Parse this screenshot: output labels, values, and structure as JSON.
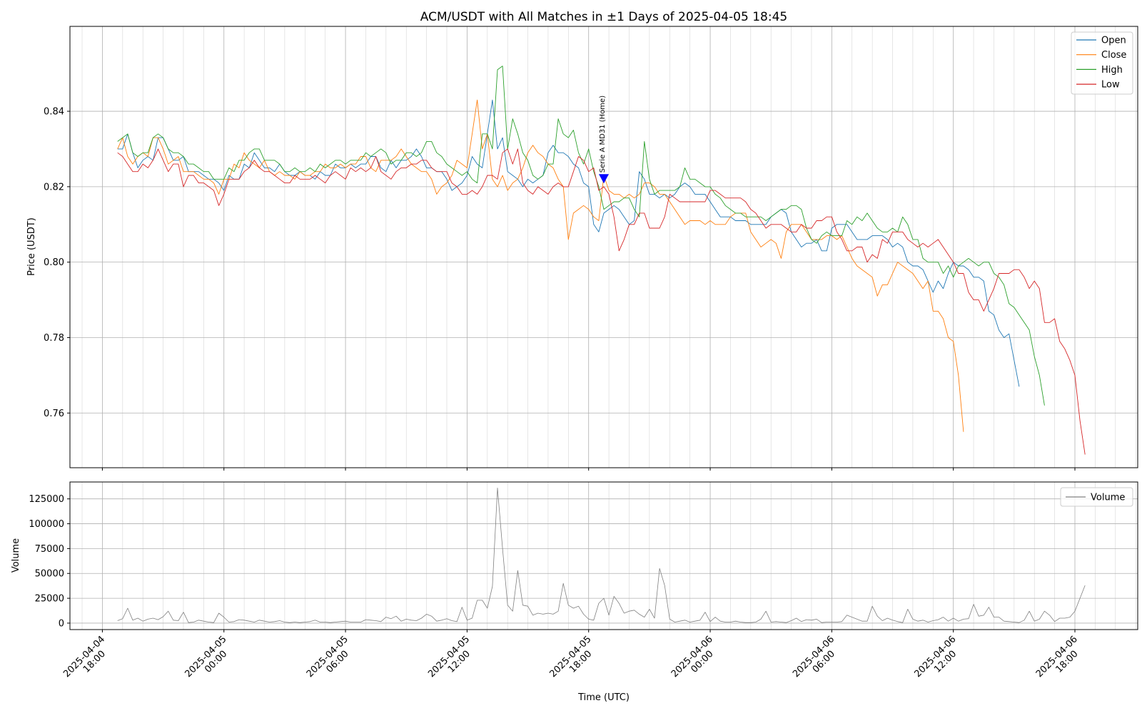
{
  "chart_data": [
    {
      "type": "line",
      "title": "ACM/USDT with All Matches in ±1 Days of 2025-04-05 18:45",
      "ylabel": "Price (USDT)",
      "ylim": [
        0.7455,
        0.8625
      ],
      "yticks": [
        "0.76",
        "0.78",
        "0.80",
        "0.82",
        "0.84"
      ],
      "xlim": [
        "2025-04-04 16:24",
        "2025-04-06 21:06"
      ],
      "time_start": "2025-04-04 18:45",
      "time_step_minutes": 15,
      "grid": true,
      "legend": "top-right",
      "series": [
        {
          "name": "Open",
          "color": "#1f77b4",
          "values": [
            0.83,
            0.83,
            0.834,
            0.829,
            0.825,
            0.827,
            0.828,
            0.827,
            0.833,
            0.833,
            0.83,
            0.827,
            0.827,
            0.828,
            0.824,
            0.824,
            0.824,
            0.823,
            0.822,
            0.822,
            0.821,
            0.819,
            0.823,
            0.822,
            0.822,
            0.826,
            0.825,
            0.829,
            0.827,
            0.825,
            0.825,
            0.824,
            0.826,
            0.824,
            0.823,
            0.823,
            0.824,
            0.823,
            0.823,
            0.822,
            0.824,
            0.823,
            0.823,
            0.826,
            0.825,
            0.825,
            0.826,
            0.825,
            0.826,
            0.826,
            0.828,
            0.828,
            0.825,
            0.824,
            0.827,
            0.825,
            0.827,
            0.827,
            0.828,
            0.83,
            0.828,
            0.825,
            0.825,
            0.824,
            0.824,
            0.822,
            0.819,
            0.82,
            0.821,
            0.823,
            0.828,
            0.826,
            0.825,
            0.834,
            0.843,
            0.83,
            0.833,
            0.824,
            0.823,
            0.822,
            0.82,
            0.822,
            0.821,
            0.822,
            0.823,
            0.829,
            0.831,
            0.829,
            0.829,
            0.828,
            0.826,
            0.825,
            0.821,
            0.82,
            0.81,
            0.808,
            0.813,
            0.814,
            0.815,
            0.814,
            0.812,
            0.81,
            0.811,
            0.824,
            0.822,
            0.818,
            0.818,
            0.817,
            0.818,
            0.817,
            0.818,
            0.82,
            0.821,
            0.82,
            0.818,
            0.818,
            0.818,
            0.816,
            0.814,
            0.812,
            0.812,
            0.812,
            0.811,
            0.811,
            0.811,
            0.81,
            0.81,
            0.81,
            0.81,
            0.812,
            0.813,
            0.814,
            0.813,
            0.808,
            0.806,
            0.804,
            0.805,
            0.805,
            0.806,
            0.803,
            0.803,
            0.809,
            0.81,
            0.81,
            0.81,
            0.808,
            0.806,
            0.806,
            0.806,
            0.807,
            0.807,
            0.807,
            0.806,
            0.804,
            0.805,
            0.804,
            0.8,
            0.799,
            0.799,
            0.798,
            0.795,
            0.792,
            0.795,
            0.793,
            0.797,
            0.8,
            0.799,
            0.799,
            0.798,
            0.796,
            0.796,
            0.795,
            0.787,
            0.786,
            0.782,
            0.78,
            0.781,
            0.774,
            0.767
          ]
        },
        {
          "name": "Close",
          "color": "#ff7f0e",
          "values": [
            0.83,
            0.833,
            0.828,
            0.826,
            0.828,
            0.829,
            0.828,
            0.833,
            0.833,
            0.83,
            0.826,
            0.827,
            0.828,
            0.824,
            0.824,
            0.824,
            0.823,
            0.822,
            0.822,
            0.821,
            0.818,
            0.822,
            0.822,
            0.826,
            0.825,
            0.829,
            0.827,
            0.826,
            0.825,
            0.827,
            0.824,
            0.823,
            0.824,
            0.823,
            0.823,
            0.822,
            0.824,
            0.823,
            0.823,
            0.824,
            0.824,
            0.826,
            0.825,
            0.825,
            0.826,
            0.825,
            0.826,
            0.826,
            0.828,
            0.828,
            0.825,
            0.824,
            0.827,
            0.827,
            0.827,
            0.828,
            0.83,
            0.828,
            0.826,
            0.825,
            0.824,
            0.824,
            0.822,
            0.818,
            0.82,
            0.821,
            0.823,
            0.827,
            0.826,
            0.825,
            0.834,
            0.843,
            0.83,
            0.834,
            0.822,
            0.82,
            0.823,
            0.819,
            0.821,
            0.822,
            0.825,
            0.829,
            0.831,
            0.829,
            0.828,
            0.826,
            0.825,
            0.822,
            0.82,
            0.806,
            0.813,
            0.814,
            0.815,
            0.814,
            0.812,
            0.811,
            0.823,
            0.819,
            0.818,
            0.818,
            0.817,
            0.818,
            0.817,
            0.818,
            0.821,
            0.821,
            0.82,
            0.818,
            0.818,
            0.816,
            0.814,
            0.812,
            0.81,
            0.811,
            0.811,
            0.811,
            0.81,
            0.811,
            0.81,
            0.81,
            0.81,
            0.812,
            0.813,
            0.813,
            0.813,
            0.808,
            0.806,
            0.804,
            0.805,
            0.806,
            0.805,
            0.801,
            0.808,
            0.81,
            0.81,
            0.81,
            0.808,
            0.806,
            0.806,
            0.806,
            0.807,
            0.807,
            0.806,
            0.807,
            0.804,
            0.801,
            0.799,
            0.798,
            0.797,
            0.796,
            0.791,
            0.794,
            0.794,
            0.797,
            0.8,
            0.799,
            0.798,
            0.797,
            0.795,
            0.793,
            0.795,
            0.787,
            0.787,
            0.785,
            0.78,
            0.779,
            0.77,
            0.755
          ]
        },
        {
          "name": "High",
          "color": "#2ca02c",
          "values": [
            0.832,
            0.833,
            0.834,
            0.829,
            0.828,
            0.829,
            0.829,
            0.833,
            0.834,
            0.833,
            0.83,
            0.829,
            0.829,
            0.828,
            0.826,
            0.826,
            0.825,
            0.824,
            0.824,
            0.822,
            0.822,
            0.822,
            0.825,
            0.824,
            0.827,
            0.827,
            0.829,
            0.83,
            0.83,
            0.827,
            0.827,
            0.827,
            0.826,
            0.824,
            0.824,
            0.825,
            0.824,
            0.824,
            0.825,
            0.824,
            0.826,
            0.825,
            0.826,
            0.827,
            0.827,
            0.826,
            0.827,
            0.827,
            0.827,
            0.829,
            0.828,
            0.829,
            0.83,
            0.829,
            0.826,
            0.827,
            0.827,
            0.829,
            0.829,
            0.828,
            0.829,
            0.832,
            0.832,
            0.829,
            0.828,
            0.826,
            0.825,
            0.824,
            0.823,
            0.824,
            0.822,
            0.821,
            0.834,
            0.834,
            0.83,
            0.851,
            0.852,
            0.83,
            0.838,
            0.834,
            0.829,
            0.827,
            0.823,
            0.822,
            0.823,
            0.826,
            0.826,
            0.838,
            0.834,
            0.833,
            0.835,
            0.829,
            0.826,
            0.83,
            0.824,
            0.82,
            0.814,
            0.815,
            0.816,
            0.816,
            0.817,
            0.817,
            0.814,
            0.812,
            0.832,
            0.822,
            0.818,
            0.819,
            0.819,
            0.819,
            0.819,
            0.82,
            0.825,
            0.822,
            0.822,
            0.821,
            0.82,
            0.82,
            0.818,
            0.817,
            0.815,
            0.814,
            0.813,
            0.813,
            0.812,
            0.812,
            0.812,
            0.812,
            0.811,
            0.812,
            0.813,
            0.814,
            0.814,
            0.815,
            0.815,
            0.814,
            0.809,
            0.806,
            0.805,
            0.807,
            0.808,
            0.807,
            0.807,
            0.807,
            0.811,
            0.81,
            0.812,
            0.811,
            0.813,
            0.811,
            0.809,
            0.808,
            0.808,
            0.809,
            0.808,
            0.812,
            0.81,
            0.806,
            0.806,
            0.801,
            0.8,
            0.8,
            0.8,
            0.797,
            0.799,
            0.796,
            0.799,
            0.8,
            0.801,
            0.8,
            0.799,
            0.8,
            0.8,
            0.797,
            0.796,
            0.794,
            0.789,
            0.788,
            0.786,
            0.784,
            0.782,
            0.775,
            0.77,
            0.762
          ]
        },
        {
          "name": "Low",
          "color": "#d62728",
          "values": [
            0.829,
            0.828,
            0.826,
            0.824,
            0.824,
            0.826,
            0.825,
            0.827,
            0.83,
            0.827,
            0.824,
            0.826,
            0.826,
            0.82,
            0.823,
            0.823,
            0.821,
            0.821,
            0.82,
            0.819,
            0.815,
            0.818,
            0.822,
            0.822,
            0.822,
            0.824,
            0.825,
            0.827,
            0.825,
            0.824,
            0.824,
            0.823,
            0.822,
            0.821,
            0.821,
            0.823,
            0.822,
            0.822,
            0.822,
            0.823,
            0.822,
            0.821,
            0.823,
            0.824,
            0.823,
            0.822,
            0.825,
            0.824,
            0.825,
            0.824,
            0.825,
            0.828,
            0.824,
            0.823,
            0.822,
            0.824,
            0.825,
            0.825,
            0.826,
            0.826,
            0.827,
            0.827,
            0.825,
            0.824,
            0.824,
            0.824,
            0.821,
            0.82,
            0.818,
            0.818,
            0.819,
            0.818,
            0.82,
            0.823,
            0.823,
            0.822,
            0.829,
            0.83,
            0.826,
            0.83,
            0.821,
            0.819,
            0.818,
            0.82,
            0.819,
            0.818,
            0.82,
            0.821,
            0.82,
            0.82,
            0.824,
            0.828,
            0.827,
            0.824,
            0.825,
            0.819,
            0.82,
            0.818,
            0.812,
            0.803,
            0.806,
            0.81,
            0.81,
            0.813,
            0.813,
            0.809,
            0.809,
            0.809,
            0.812,
            0.818,
            0.817,
            0.816,
            0.816,
            0.816,
            0.816,
            0.816,
            0.816,
            0.819,
            0.819,
            0.818,
            0.817,
            0.817,
            0.817,
            0.817,
            0.816,
            0.814,
            0.813,
            0.811,
            0.809,
            0.81,
            0.81,
            0.81,
            0.809,
            0.808,
            0.808,
            0.81,
            0.809,
            0.809,
            0.811,
            0.811,
            0.812,
            0.812,
            0.808,
            0.806,
            0.803,
            0.803,
            0.804,
            0.804,
            0.8,
            0.802,
            0.801,
            0.806,
            0.805,
            0.808,
            0.808,
            0.808,
            0.806,
            0.805,
            0.804,
            0.805,
            0.804,
            0.805,
            0.806,
            0.804,
            0.802,
            0.8,
            0.797,
            0.797,
            0.792,
            0.79,
            0.79,
            0.787,
            0.79,
            0.793,
            0.797,
            0.797,
            0.797,
            0.798,
            0.798,
            0.796,
            0.793,
            0.795,
            0.793,
            0.784,
            0.784,
            0.785,
            0.779,
            0.777,
            0.774,
            0.77,
            0.758,
            0.749
          ]
        }
      ],
      "annotations": [
        {
          "text": "Serie A MD31 (Home)",
          "time": "2025-04-05 18:45",
          "value": 0.8222,
          "marker": "triangle-down",
          "color": "#0000ff"
        }
      ]
    },
    {
      "type": "line",
      "ylabel": "Volume",
      "xlabel": "Time (UTC)",
      "ylim": [
        -6500,
        142000
      ],
      "yticks": [
        "0",
        "25000",
        "50000",
        "75000",
        "100000",
        "125000"
      ],
      "xtick_labels": [
        [
          "2025-04-04",
          "18:00"
        ],
        [
          "2025-04-05",
          "00:00"
        ],
        [
          "2025-04-05",
          "06:00"
        ],
        [
          "2025-04-05",
          "12:00"
        ],
        [
          "2025-04-05",
          "18:00"
        ],
        [
          "2025-04-06",
          "00:00"
        ],
        [
          "2025-04-06",
          "06:00"
        ],
        [
          "2025-04-06",
          "12:00"
        ],
        [
          "2025-04-06",
          "18:00"
        ]
      ],
      "grid": true,
      "legend": "top-right",
      "series": [
        {
          "name": "Volume",
          "color": "#808080",
          "values": [
            2500,
            4500,
            15000,
            3000,
            5000,
            2000,
            4000,
            5000,
            3500,
            6500,
            12000,
            3000,
            2500,
            11000,
            500,
            1000,
            3000,
            2000,
            1000,
            500,
            10000,
            6000,
            1000,
            1500,
            3500,
            3000,
            2000,
            1000,
            3000,
            2000,
            1000,
            1500,
            2500,
            1000,
            500,
            1000,
            500,
            1000,
            1500,
            3000,
            1000,
            1000,
            500,
            1000,
            1500,
            2000,
            1000,
            1000,
            1000,
            3500,
            3000,
            2500,
            1500,
            6000,
            4500,
            7000,
            2000,
            4000,
            3000,
            2500,
            5000,
            9000,
            7000,
            2000,
            3000,
            4500,
            2500,
            1500,
            16000,
            3000,
            5000,
            23000,
            23000,
            15000,
            37000,
            136000,
            75000,
            18000,
            12000,
            53000,
            18000,
            17000,
            8000,
            10000,
            9000,
            10000,
            9000,
            12000,
            40000,
            18000,
            15000,
            17000,
            9000,
            4000,
            3000,
            20000,
            25000,
            8000,
            27000,
            20000,
            10000,
            12000,
            13000,
            9000,
            6000,
            14000,
            5000,
            55000,
            38000,
            4000,
            1000,
            2000,
            3000,
            1000,
            2000,
            3000,
            11000,
            1500,
            6000,
            2000,
            1000,
            1000,
            2000,
            1000,
            500,
            500,
            1000,
            4000,
            12000,
            1000,
            1500,
            1000,
            500,
            2500,
            5000,
            1500,
            3500,
            3000,
            4000,
            500,
            1000,
            1000,
            1000,
            1500,
            8000,
            6000,
            4000,
            2000,
            2000,
            17000,
            7000,
            2500,
            5000,
            3000,
            1500,
            500,
            14000,
            4000,
            2000,
            3000,
            1000,
            2500,
            3500,
            6000,
            2000,
            5000,
            2000,
            4000,
            4500,
            19000,
            7000,
            8000,
            16000,
            6000,
            6000,
            2000,
            1500,
            1000,
            500,
            3000,
            12000,
            2000,
            4000,
            12000,
            8000,
            1500,
            5000,
            5000,
            6000,
            12000,
            25000,
            38000
          ]
        }
      ]
    }
  ]
}
